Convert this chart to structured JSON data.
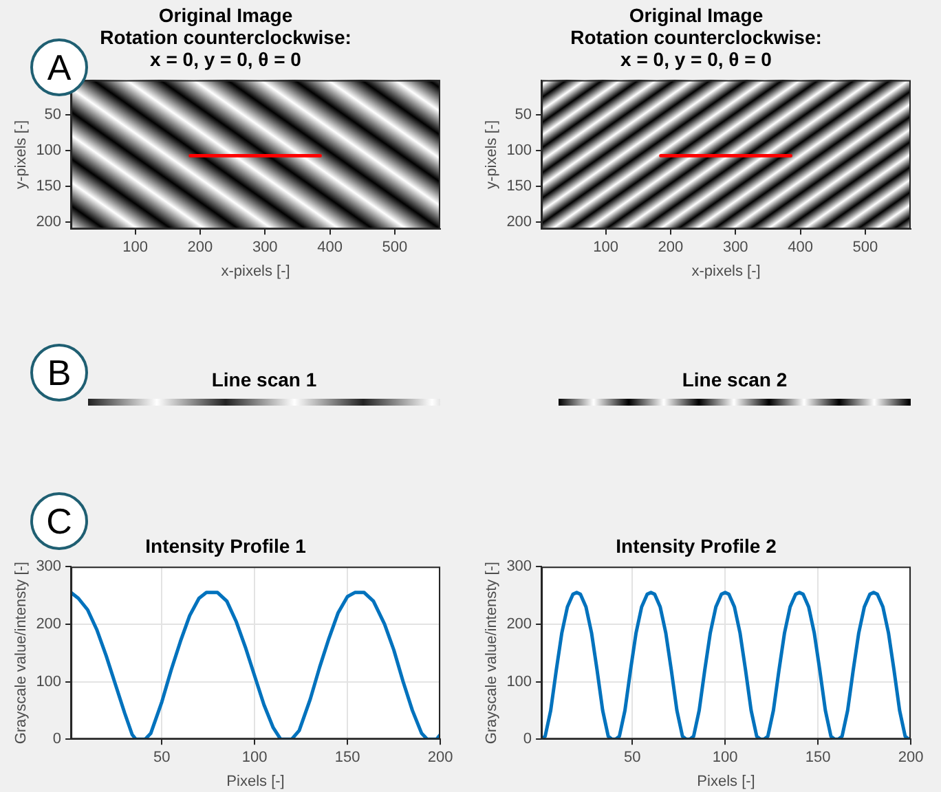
{
  "chart_data": [
    {
      "type": "line",
      "title": "Original Image\nRotation counterclockwise:\nx = 0, y = 0, θ = 0",
      "xlabel": "x-pixels [-]",
      "ylabel": "y-pixels [-]",
      "annotations": [
        "A"
      ],
      "xlim": [
        1,
        570
      ],
      "xticks": [
        100,
        200,
        300,
        400,
        500
      ],
      "ylim": [
        210,
        1
      ],
      "yticks": [
        50,
        100,
        150,
        200
      ],
      "grid": false,
      "x": [
        185,
        385
      ],
      "series": [
        {
          "color": "#ff0000",
          "values": [
            107,
            107
          ]
        }
      ]
    },
    {
      "type": "line",
      "title": "Original Image\nRotation counterclockwise:\nx = 0, y = 0, θ = 0",
      "xlabel": "x-pixels [-]",
      "ylabel": "y-pixels [-]",
      "xlim": [
        1,
        570
      ],
      "xticks": [
        100,
        200,
        300,
        400,
        500
      ],
      "ylim": [
        210,
        1
      ],
      "yticks": [
        50,
        100,
        150,
        200
      ],
      "grid": false,
      "x": [
        185,
        385
      ],
      "series": [
        {
          "color": "#ff0000",
          "values": [
            107,
            107
          ]
        }
      ]
    },
    {
      "type": "other",
      "title": "Line scan 1",
      "annotations": [
        "B"
      ]
    },
    {
      "type": "other",
      "title": "Line scan 2"
    },
    {
      "type": "line",
      "title": "Intensity Profile 1",
      "xlabel": "Pixels [-]",
      "ylabel": "Grayscale value/intensty [-]",
      "annotations": [
        "C"
      ],
      "xlim": [
        1,
        200
      ],
      "xticks": [
        50,
        100,
        150,
        200
      ],
      "ylim": [
        0,
        300
      ],
      "yticks": [
        0,
        100,
        200,
        300
      ],
      "grid": true,
      "x": [
        1,
        5,
        10,
        15,
        20,
        25,
        30,
        34,
        36,
        41,
        44,
        50,
        55,
        60,
        65,
        70,
        74,
        80,
        85,
        90,
        95,
        100,
        105,
        110,
        114,
        120,
        124,
        130,
        135,
        140,
        145,
        150,
        154,
        159,
        164,
        170,
        175,
        180,
        185,
        190,
        193,
        198,
        200
      ],
      "series": [
        {
          "color": "#0072bd",
          "values": [
            255,
            245,
            225,
            190,
            145,
            95,
            45,
            8,
            0,
            0,
            10,
            65,
            120,
            170,
            215,
            245,
            255,
            255,
            240,
            205,
            160,
            110,
            60,
            20,
            0,
            0,
            15,
            70,
            125,
            175,
            220,
            248,
            255,
            255,
            240,
            200,
            155,
            100,
            50,
            10,
            0,
            0,
            8
          ]
        }
      ]
    },
    {
      "type": "line",
      "title": "Intensity Profile 2",
      "xlabel": "Pixels [-]",
      "ylabel": "Grayscale value/intensty [-]",
      "xlim": [
        1,
        200
      ],
      "xticks": [
        50,
        100,
        150,
        200
      ],
      "ylim": [
        0,
        300
      ],
      "yticks": [
        0,
        100,
        200,
        300
      ],
      "grid": true,
      "x": [
        1,
        3,
        6,
        9,
        12,
        15,
        18,
        20,
        22,
        25,
        28,
        31,
        34,
        37,
        39,
        41,
        43,
        46,
        49,
        52,
        55,
        58,
        60,
        62,
        65,
        68,
        71,
        74,
        77,
        79,
        81,
        83,
        86,
        89,
        92,
        95,
        98,
        100,
        102,
        105,
        108,
        111,
        114,
        117,
        119,
        121,
        123,
        126,
        129,
        132,
        135,
        138,
        140,
        142,
        145,
        148,
        151,
        154,
        157,
        159,
        161,
        163,
        166,
        169,
        172,
        175,
        178,
        180,
        182,
        185,
        188,
        191,
        194,
        197,
        199,
        200
      ],
      "series": [
        {
          "color": "#0072bd",
          "values": [
            0,
            5,
            50,
            120,
            185,
            230,
            252,
            255,
            252,
            230,
            185,
            120,
            50,
            5,
            0,
            0,
            5,
            50,
            120,
            185,
            230,
            252,
            255,
            252,
            230,
            185,
            120,
            50,
            5,
            0,
            0,
            5,
            50,
            120,
            185,
            230,
            252,
            255,
            252,
            230,
            185,
            120,
            50,
            5,
            0,
            0,
            5,
            50,
            120,
            185,
            230,
            252,
            255,
            252,
            230,
            185,
            120,
            50,
            5,
            0,
            0,
            5,
            50,
            120,
            185,
            230,
            252,
            255,
            252,
            230,
            185,
            120,
            50,
            5,
            0,
            0
          ]
        }
      ]
    }
  ]
}
